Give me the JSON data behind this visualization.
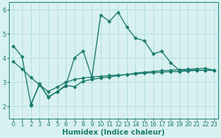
{
  "line1_x": [
    0,
    1,
    2,
    3,
    4,
    5,
    6,
    7,
    8,
    9,
    10,
    11,
    12,
    13,
    14,
    15,
    16,
    17,
    18,
    19,
    20,
    21,
    22,
    23
  ],
  "line1_y": [
    4.5,
    4.05,
    2.1,
    2.9,
    2.4,
    2.6,
    2.85,
    4.02,
    4.3,
    3.2,
    5.78,
    5.52,
    5.9,
    5.28,
    4.82,
    4.72,
    4.18,
    4.28,
    3.82,
    3.5,
    3.5,
    3.5,
    3.5,
    3.5
  ],
  "line2_x": [
    2,
    3,
    4,
    5,
    6,
    7,
    8,
    9,
    10,
    11,
    12,
    13,
    14,
    15,
    16,
    17,
    18,
    19,
    20,
    21,
    22,
    23
  ],
  "line2_y": [
    2.05,
    2.95,
    2.38,
    2.62,
    2.88,
    2.82,
    3.05,
    3.12,
    3.18,
    3.22,
    3.28,
    3.32,
    3.38,
    3.42,
    3.45,
    3.48,
    3.5,
    3.52,
    3.54,
    3.56,
    3.58,
    3.5
  ],
  "line3_x": [
    0,
    1,
    2,
    3,
    4,
    5,
    6,
    7,
    8,
    9,
    10,
    11,
    12,
    13,
    14,
    15,
    16,
    17,
    18,
    19,
    20,
    21,
    22,
    23
  ],
  "line3_y": [
    3.85,
    3.55,
    3.2,
    2.9,
    2.62,
    2.8,
    3.0,
    3.12,
    3.18,
    3.22,
    3.25,
    3.28,
    3.3,
    3.32,
    3.35,
    3.38,
    3.4,
    3.42,
    3.44,
    3.45,
    3.47,
    3.49,
    3.5,
    3.5
  ],
  "line_color": "#1a7a6e",
  "bg_color": "#d8f0f0",
  "grid_color": "#aadddd",
  "xlabel": "Humidex (Indice chaleur)",
  "ylim": [
    1.5,
    6.3
  ],
  "xlim": [
    -0.5,
    23.5
  ],
  "yticks": [
    2,
    3,
    4,
    5,
    6
  ],
  "xticks": [
    0,
    1,
    2,
    3,
    4,
    5,
    6,
    7,
    8,
    9,
    10,
    11,
    12,
    13,
    14,
    15,
    16,
    17,
    18,
    19,
    20,
    21,
    22,
    23
  ],
  "marker": "D",
  "markersize": 2.5,
  "linewidth": 1.0,
  "tick_fontsize": 6,
  "xlabel_fontsize": 7.5
}
